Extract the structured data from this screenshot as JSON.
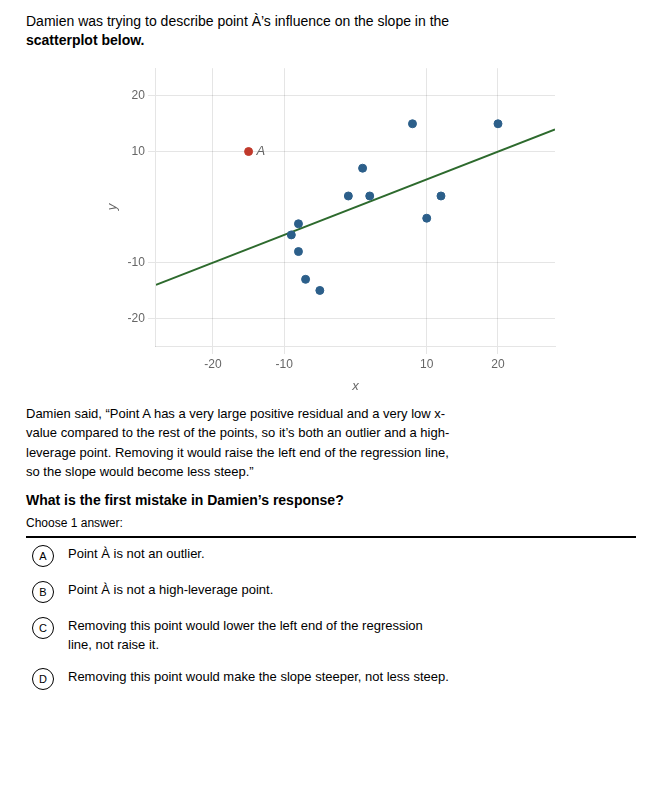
{
  "chart_data": {
    "type": "scatter",
    "title": [
      "Damien was trying to describe point À’s influence on the slope in the",
      "scatterplot below."
    ],
    "body": [
      "Damien said, “Point A has a very large positive residual and a very low x-",
      "value compared to the rest of the points, so it’s both an outlier and a high-",
      "leverage point. Removing it would raise the left end of the regression line,",
      "so the slope would become less steep.”"
    ],
    "question": "What is the first mistake in Damien’s response?",
    "choose_text": "Choose 1 answer:",
    "answers": [
      {
        "label": "A",
        "lines": [
          "Point À is not an outlier."
        ]
      },
      {
        "label": "B",
        "lines": [
          "Point À is not a high-leverage point."
        ]
      },
      {
        "label": "C",
        "lines": [
          "Removing this point would lower the left end of the regression",
          "line, not raise it."
        ]
      },
      {
        "label": "D",
        "lines": [
          "Removing this point would make the slope steeper, not less steep."
        ]
      }
    ],
    "x_label": "x",
    "y_label": "y",
    "series": [
      {
        "type": "scatter",
        "color": "#2c5f8a",
        "x": [
          1,
          2,
          -1,
          -8,
          -9,
          -8,
          -7,
          -5,
          8,
          20,
          12,
          10
        ],
        "values": [
          7,
          2,
          2,
          -3,
          -5,
          -8,
          -13,
          -15,
          15,
          15,
          2,
          -2
        ]
      },
      {
        "type": "scatter",
        "color": "#c0392b",
        "x": [
          -15
        ],
        "values": [
          10
        ]
      },
      {
        "type": "line",
        "color": "#2d6a2d",
        "x": [
          -28,
          28
        ],
        "values": [
          -14,
          14
        ]
      }
    ],
    "annotations": [
      {
        "text": "A",
        "x": -15,
        "y": 10
      }
    ],
    "xlim": [
      -28,
      28
    ],
    "ylim": [
      -25,
      25
    ],
    "xticks": [
      -20,
      -10,
      10,
      20
    ],
    "yticks": [
      -20,
      -10,
      10,
      20
    ],
    "grid": true
  }
}
